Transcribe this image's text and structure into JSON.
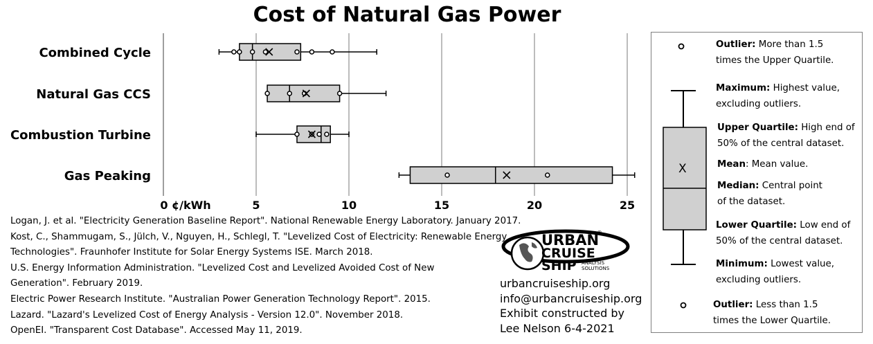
{
  "chart_data": {
    "type": "boxplot",
    "title": "Cost of Natural Gas Power",
    "x_unit_label": "0 ¢/kWh",
    "xlim": [
      0,
      26
    ],
    "x_ticks": [
      "0 ¢/kWh",
      "5",
      "10",
      "15",
      "20",
      "25"
    ],
    "x_tick_values": [
      0,
      5,
      10,
      15,
      20,
      25
    ],
    "grid": "vertical",
    "categories": [
      {
        "name": "Combined Cycle",
        "min": 3.0,
        "q1": 4.1,
        "median": 4.8,
        "q3": 7.4,
        "max": 11.5,
        "mean": 5.7,
        "points": [
          3.8,
          4.1,
          4.8,
          5.5,
          7.2,
          8.0,
          9.1
        ]
      },
      {
        "name": "Natural Gas CCS",
        "min": 5.6,
        "q1": 5.6,
        "median": 6.8,
        "q3": 9.5,
        "max": 12.0,
        "mean": 7.7,
        "points": [
          5.6,
          6.8,
          7.6,
          9.5
        ]
      },
      {
        "name": "Combustion Turbine",
        "min": 5.0,
        "q1": 7.2,
        "median": 8.5,
        "q3": 9.0,
        "max": 10.0,
        "mean": 8.0,
        "points": [
          7.2,
          8.0,
          8.4,
          8.8
        ]
      },
      {
        "name": "Gas Peaking",
        "min": 12.7,
        "q1": 13.3,
        "median": 17.9,
        "q3": 24.2,
        "max": 25.4,
        "mean": 18.5,
        "points": [
          15.3,
          20.7
        ]
      }
    ]
  },
  "references": [
    "Logan, J. et al. \"Electricity Generation Baseline Report\". National Renewable Energy Laboratory. January 2017.",
    "Kost, C., Shammugam, S., Jülch, V., Nguyen, H., Schlegl, T. \"Levelized Cost of Electricity: Renewable Energy",
    "Technologies\". Fraunhofer Institute for Solar Energy Systems ISE. March 2018.",
    "U.S. Energy Information Administration. \"Levelized Cost and Levelized Avoided Cost of New",
    "Generation\". February 2019.",
    "Electric Power Research Institute. \"Australian Power Generation Technology Report\". 2015.",
    "Lazard. \"Lazard's Levelized Cost of Energy Analysis - Version 12.0\". November 2018.",
    "OpenEI. \"Transparent Cost Database\". Accessed May 11, 2019."
  ],
  "logo": {
    "line1": "URBAN",
    "line2": "CRUISE",
    "line3": "SHIP",
    "tag1": "ANALYSIS",
    "tag2": "SOLUTIONS",
    "reg": "®"
  },
  "credits": {
    "website": "urbancruiseship.org",
    "email": "info@urbancruiseship.org",
    "line1": "Exhibit constructed by",
    "line2": "Lee Nelson 6-4-2021"
  },
  "legend": {
    "mean_symbol": "X",
    "outlier_upper_term": "Outlier:",
    "outlier_upper_desc_1": " More than 1.5",
    "outlier_upper_desc_2": "times the Upper Quartile.",
    "maximum_term": "Maximum:",
    "maximum_desc_1": " Highest value,",
    "maximum_desc_2": "excluding outliers.",
    "upper_quartile_term": "Upper Quartile:",
    "upper_quartile_desc_1": " High end of",
    "upper_quartile_desc_2": "50% of the central dataset.",
    "mean_term": "Mean",
    "mean_desc": ": Mean value.",
    "median_term": "Median:",
    "median_desc_1": " Central point",
    "median_desc_2": "of the dataset.",
    "lower_quartile_term": "Lower Quartile:",
    "lower_quartile_desc_1": " Low end of",
    "lower_quartile_desc_2": "50% of the central dataset.",
    "minimum_term": "Minimum:",
    "minimum_desc_1": " Lowest value,",
    "minimum_desc_2": "excluding outliers.",
    "outlier_lower_term": "Outlier:",
    "outlier_lower_desc_1": " Less than 1.5",
    "outlier_lower_desc_2": "times the Lower Quartile."
  }
}
